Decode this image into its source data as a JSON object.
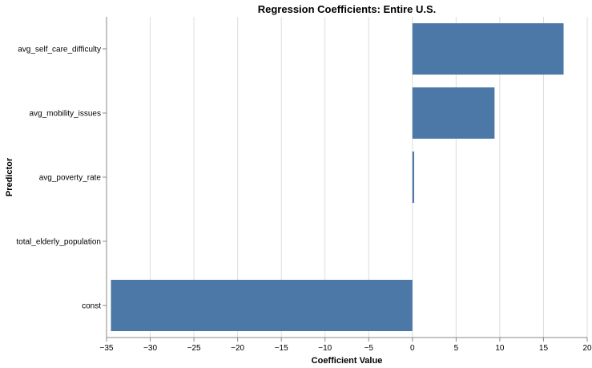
{
  "chart_data": {
    "type": "bar",
    "orientation": "horizontal",
    "title": "Regression Coefficients: Entire U.S.",
    "xlabel": "Coefficient Value",
    "ylabel": "Predictor",
    "categories": [
      "avg_self_care_difficulty",
      "avg_mobility_issues",
      "avg_poverty_rate",
      "total_elderly_population",
      "const"
    ],
    "values": [
      17.3,
      9.4,
      0.2,
      0.0,
      -34.5
    ],
    "xlim": [
      -35,
      20
    ],
    "xticks": [
      -35,
      -30,
      -25,
      -20,
      -15,
      -10,
      -5,
      0,
      5,
      10,
      15,
      20
    ],
    "xtick_labels": [
      "−35",
      "−30",
      "−25",
      "−20",
      "−15",
      "−10",
      "−5",
      "0",
      "5",
      "10",
      "15",
      "20"
    ],
    "grid": true,
    "bar_color": "#4c78a8"
  }
}
